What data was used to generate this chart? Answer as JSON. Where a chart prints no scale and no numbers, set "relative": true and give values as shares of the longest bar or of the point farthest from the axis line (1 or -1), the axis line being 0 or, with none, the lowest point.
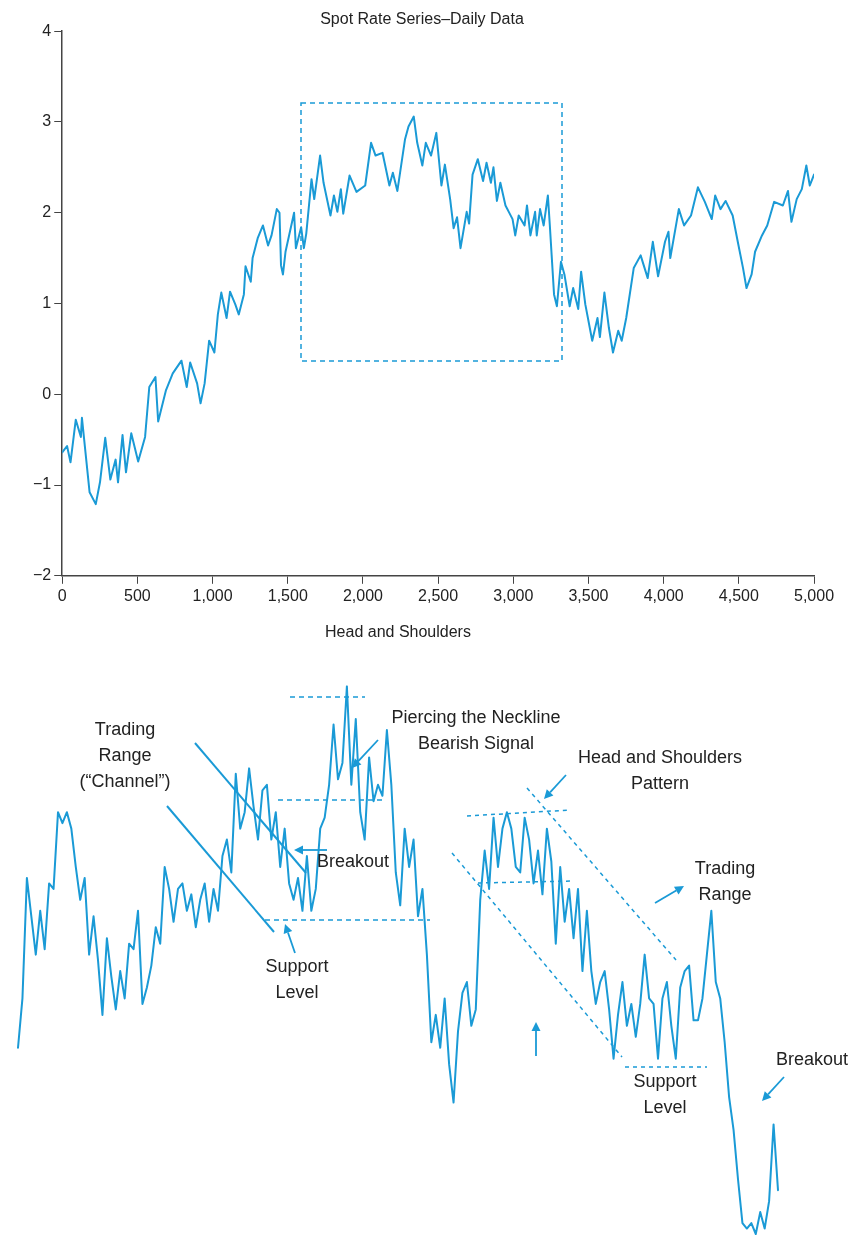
{
  "chart_data": [
    {
      "type": "line",
      "title": "Spot Rate Series–Daily Data",
      "xlim": [
        0,
        5000
      ],
      "xticks": [
        0,
        500,
        {
          "value": 1000,
          "label": "1,000"
        },
        {
          "value": 1500,
          "label": "1,500"
        },
        {
          "value": 2000,
          "label": "2,000"
        },
        {
          "value": 2500,
          "label": "2,500"
        },
        {
          "value": 3000,
          "label": "3,000"
        },
        {
          "value": 3500,
          "label": "3,500"
        },
        {
          "value": 4000,
          "label": "4,000"
        },
        {
          "value": 4500,
          "label": "4,500"
        },
        {
          "value": 5000,
          "label": "5,000"
        }
      ],
      "ylim": [
        -2,
        4
      ],
      "yticks": [
        {
          "value": -2,
          "label": "−2"
        },
        {
          "value": -1,
          "label": "−1"
        },
        0,
        1,
        2,
        3,
        4
      ],
      "grid": false,
      "legend": false,
      "color": "#1a9ad6",
      "x": [
        0,
        32,
        55,
        90,
        124,
        131,
        182,
        223,
        251,
        286,
        320,
        355,
        371,
        401,
        424,
        459,
        505,
        551,
        579,
        620,
        638,
        689,
        735,
        793,
        828,
        851,
        897,
        920,
        947,
        977,
        1012,
        1035,
        1058,
        1093,
        1116,
        1151,
        1174,
        1208,
        1219,
        1254,
        1266,
        1300,
        1335,
        1369,
        1392,
        1427,
        1445,
        1455,
        1468,
        1485,
        1542,
        1554,
        1589,
        1607,
        1623,
        1658,
        1676,
        1715,
        1738,
        1784,
        1807,
        1830,
        1853,
        1869,
        1911,
        1957,
        2015,
        2054,
        2084,
        2130,
        2176,
        2199,
        2229,
        2280,
        2303,
        2338,
        2361,
        2395,
        2418,
        2453,
        2488,
        2522,
        2545,
        2580,
        2603,
        2626,
        2649,
        2690,
        2706,
        2729,
        2764,
        2799,
        2822,
        2851,
        2868,
        2891,
        2914,
        2948,
        2995,
        3013,
        3036,
        3075,
        3091,
        3114,
        3145,
        3156,
        3178,
        3202,
        3230,
        3243,
        3271,
        3290,
        3317,
        3340,
        3375,
        3398,
        3432,
        3451,
        3479,
        3525,
        3560,
        3576,
        3606,
        3636,
        3663,
        3698,
        3721,
        3751,
        3801,
        3847,
        3894,
        3928,
        3963,
        4009,
        4032,
        4044,
        4101,
        4136,
        4182,
        4228,
        4274,
        4320,
        4343,
        4378,
        4412,
        4459,
        4493,
        4528,
        4551,
        4585,
        4608,
        4654,
        4689,
        4735,
        4793,
        4827,
        4850,
        4885,
        4919,
        4949,
        4972,
        5000
      ],
      "values": [
        -0.64,
        -0.57,
        -0.75,
        -0.28,
        -0.47,
        -0.26,
        -1.08,
        -1.21,
        -0.97,
        -0.48,
        -0.94,
        -0.72,
        -0.97,
        -0.45,
        -0.86,
        -0.43,
        -0.74,
        -0.47,
        0.08,
        0.19,
        -0.3,
        0.04,
        0.23,
        0.37,
        0.08,
        0.35,
        0.12,
        -0.1,
        0.12,
        0.59,
        0.46,
        0.88,
        1.12,
        0.84,
        1.13,
        0.99,
        0.88,
        1.1,
        1.41,
        1.24,
        1.5,
        1.72,
        1.86,
        1.64,
        1.75,
        2.04,
        2.0,
        1.42,
        1.32,
        1.57,
        2.0,
        1.61,
        1.84,
        1.61,
        1.77,
        2.37,
        2.15,
        2.63,
        2.33,
        1.97,
        2.19,
        2.01,
        2.26,
        1.99,
        2.41,
        2.23,
        2.3,
        2.77,
        2.63,
        2.66,
        2.3,
        2.44,
        2.24,
        2.81,
        2.95,
        3.06,
        2.77,
        2.52,
        2.77,
        2.63,
        2.88,
        2.3,
        2.53,
        2.15,
        1.83,
        1.95,
        1.61,
        2.01,
        1.88,
        2.42,
        2.59,
        2.35,
        2.55,
        2.33,
        2.5,
        2.13,
        2.33,
        2.08,
        1.93,
        1.75,
        1.97,
        1.86,
        2.08,
        1.75,
        2.01,
        1.75,
        2.04,
        1.86,
        2.19,
        1.86,
        1.1,
        0.97,
        1.46,
        1.32,
        0.97,
        1.17,
        0.94,
        1.35,
        0.99,
        0.59,
        0.84,
        0.63,
        1.12,
        0.73,
        0.46,
        0.7,
        0.59,
        0.84,
        1.39,
        1.53,
        1.28,
        1.68,
        1.3,
        1.68,
        1.79,
        1.5,
        2.04,
        1.86,
        1.97,
        2.28,
        2.12,
        1.93,
        2.19,
        2.04,
        2.13,
        1.97,
        1.68,
        1.39,
        1.17,
        1.32,
        1.57,
        1.75,
        1.86,
        2.12,
        2.08,
        2.24,
        1.9,
        2.15,
        2.26,
        2.52,
        2.3,
        2.42
      ]
    },
    {
      "type": "line",
      "title": "Head and Shoulders",
      "relative": true,
      "legend": false,
      "color": "#1a9ad6",
      "annotations": [
        "Trading\nRange\n(“Channel”)",
        "Piercing the Neckline\nBearish Signal",
        "Breakout",
        "Support\nLevel",
        "Head and Shoulders\nPattern",
        "Trading\nRange",
        "Support\nLevel",
        "Breakout"
      ],
      "categories": [
        null,
        null,
        null,
        null,
        null,
        null,
        null,
        null,
        null,
        null,
        null,
        null,
        null,
        null,
        null,
        null,
        null,
        null,
        null,
        null,
        null,
        null,
        null,
        null,
        null,
        null,
        null,
        null,
        null,
        null,
        null,
        null,
        null,
        null,
        null,
        null,
        null,
        null,
        null,
        null,
        null,
        null,
        null,
        null,
        null,
        null,
        null,
        null,
        null,
        null,
        null,
        null,
        null,
        null,
        null,
        null,
        null,
        null,
        null,
        null,
        null,
        null,
        null,
        null,
        null,
        null,
        null,
        null,
        null,
        null,
        null,
        null,
        null,
        null,
        null,
        null,
        null,
        null,
        null,
        null,
        null,
        null,
        null,
        null,
        null,
        null,
        null,
        null,
        null,
        null,
        null,
        null,
        null,
        null,
        null,
        null,
        null,
        null,
        null,
        null,
        null,
        null,
        null,
        null,
        null,
        null,
        null,
        null,
        null,
        null,
        null,
        null,
        null,
        null,
        null,
        null,
        null,
        null,
        null,
        null,
        null,
        null,
        null,
        null,
        null,
        null,
        null,
        null,
        null,
        null,
        null,
        null,
        null,
        null,
        null,
        null,
        null,
        null,
        null,
        null,
        null,
        null,
        null,
        null,
        null,
        null,
        null,
        null,
        null,
        null,
        null,
        null,
        null,
        null,
        null,
        null,
        null,
        null,
        null,
        null,
        null,
        null,
        null,
        null,
        null,
        null,
        null,
        null,
        null,
        null,
        null,
        null
      ],
      "values": [
        0.34,
        0.43,
        0.65,
        0.58,
        0.51,
        0.59,
        0.52,
        0.64,
        0.63,
        0.77,
        0.75,
        0.77,
        0.74,
        0.67,
        0.61,
        0.65,
        0.51,
        0.58,
        0.5,
        0.4,
        0.54,
        0.47,
        0.41,
        0.48,
        0.43,
        0.53,
        0.52,
        0.59,
        0.42,
        0.45,
        0.49,
        0.56,
        0.53,
        0.67,
        0.63,
        0.57,
        0.63,
        0.64,
        0.59,
        0.62,
        0.56,
        0.61,
        0.64,
        0.57,
        0.63,
        0.59,
        0.69,
        0.72,
        0.66,
        0.84,
        0.74,
        0.77,
        0.85,
        0.78,
        0.72,
        0.81,
        0.82,
        0.72,
        0.77,
        0.67,
        0.74,
        0.64,
        0.61,
        0.65,
        0.59,
        0.69,
        0.59,
        0.63,
        0.74,
        0.76,
        0.82,
        0.93,
        0.83,
        0.86,
        1,
        0.82,
        0.94,
        0.77,
        0.72,
        0.87,
        0.79,
        0.82,
        0.8,
        0.92,
        0.82,
        0.66,
        0.6,
        0.74,
        0.67,
        0.72,
        0.58,
        0.63,
        0.51,
        0.35,
        0.4,
        0.34,
        0.43,
        0.31,
        0.24,
        0.37,
        0.44,
        0.46,
        0.38,
        0.41,
        0.61,
        0.7,
        0.63,
        0.76,
        0.67,
        0.74,
        0.77,
        0.74,
        0.67,
        0.66,
        0.76,
        0.72,
        0.64,
        0.7,
        0.62,
        0.74,
        0.68,
        0.53,
        0.67,
        0.57,
        0.63,
        0.54,
        0.63,
        0.48,
        0.59,
        0.48,
        0.42,
        0.46,
        0.48,
        0.41,
        0.32,
        0.4,
        0.46,
        0.38,
        0.42,
        0.36,
        0.42,
        0.51,
        0.43,
        0.42,
        0.32,
        0.43,
        0.46,
        0.38,
        0.32,
        0.45,
        0.48,
        0.49,
        0.39,
        0.39,
        0.43,
        0.51,
        0.59,
        0.46,
        0.43,
        0.35,
        0.25,
        0.19,
        0.1,
        0.02,
        0.01,
        0.02,
        0,
        0.04,
        0.01,
        0.06,
        0.2,
        0.08
      ]
    }
  ]
}
